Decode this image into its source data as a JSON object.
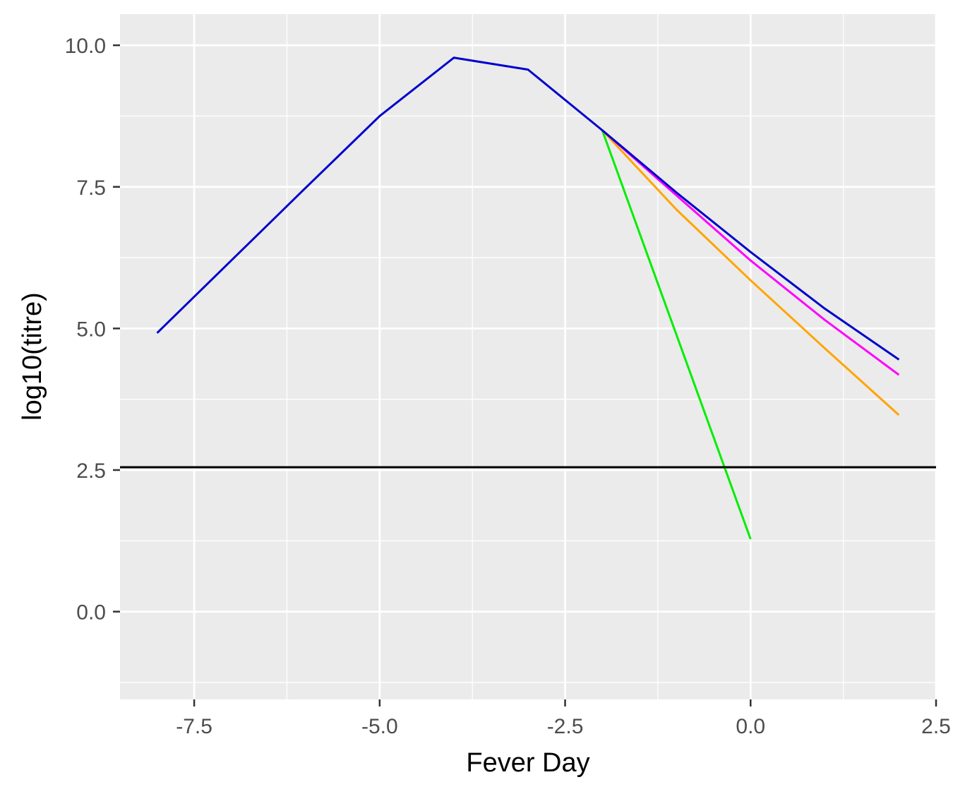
{
  "chart_data": {
    "type": "line",
    "title": "",
    "xlabel": "Fever Day",
    "ylabel": "log10(titre)",
    "xlim": [
      -8.5,
      2.5
    ],
    "ylim": [
      -1.55,
      10.55
    ],
    "x_ticks": [
      -7.5,
      -5.0,
      -2.5,
      0.0,
      2.5
    ],
    "x_tick_labels": [
      "-7.5",
      "-5.0",
      "-2.5",
      "0.0",
      "2.5"
    ],
    "x_minor_ticks": [
      -6.25,
      -3.75,
      -1.25,
      1.25
    ],
    "y_ticks": [
      0.0,
      2.5,
      5.0,
      7.5,
      10.0
    ],
    "y_tick_labels": [
      "0.0",
      "2.5",
      "5.0",
      "7.5",
      "10.0"
    ],
    "y_minor_ticks": [
      -1.25,
      1.25,
      3.75,
      6.25,
      8.75
    ],
    "grid": true,
    "legend": "none",
    "background": "#ebebeb",
    "gridline_color": "#ffffff",
    "reference_line": {
      "y": 2.55,
      "color": "#000000"
    },
    "series": [
      {
        "color": "#00ee00",
        "x": [
          -2,
          0
        ],
        "y": [
          8.5,
          1.28
        ]
      },
      {
        "color": "#ffa500",
        "x": [
          -2,
          -1,
          0,
          1,
          2
        ],
        "y": [
          8.5,
          7.1,
          5.85,
          4.65,
          3.47
        ]
      },
      {
        "color": "#ff00ff",
        "x": [
          -2,
          -1,
          0,
          1,
          2
        ],
        "y": [
          8.5,
          7.35,
          6.2,
          5.15,
          4.18
        ]
      },
      {
        "color": "#0000cd",
        "x": [
          -8,
          -7,
          -6,
          -5,
          -4,
          -3,
          -2,
          -1,
          0,
          1,
          2
        ],
        "y": [
          4.92,
          6.2,
          7.48,
          8.75,
          9.78,
          9.57,
          8.5,
          7.4,
          6.35,
          5.35,
          4.45
        ]
      }
    ]
  }
}
